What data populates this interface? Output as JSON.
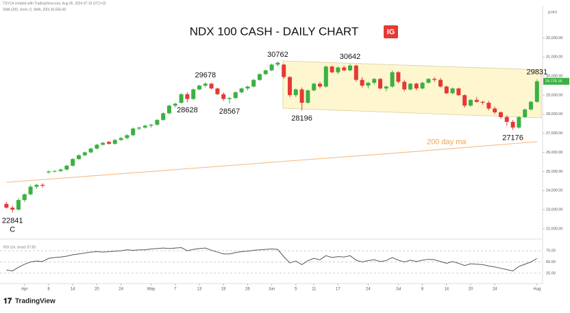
{
  "header": {
    "credit": "TSYCA created with TradingView.com, Aug 05, 2024 07:19 UTC+10",
    "indicator": "SMA (200, close, 0, SMA, 200)  26,556.68",
    "scale_unit": "point",
    "brand": "TradingView"
  },
  "chart_data": {
    "type": "candlestick",
    "title": "NDX 100 CASH - DAILY CHART",
    "logo": "IG",
    "up_color": "#3cb043",
    "down_color": "#e53935",
    "ylim": [
      21600,
      33450
    ],
    "yticks": [
      {
        "value": 22000,
        "label": "22,000.00"
      },
      {
        "value": 23000,
        "label": "23,000.00"
      },
      {
        "value": 24000,
        "label": "24,000.00"
      },
      {
        "value": 25000,
        "label": "25,000.00"
      },
      {
        "value": 26000,
        "label": "26,000.00"
      },
      {
        "value": 27000,
        "label": "27,000.00"
      },
      {
        "value": 28000,
        "label": "28,000.00"
      },
      {
        "value": 29000,
        "label": "29,000.00"
      },
      {
        "value": 30000,
        "label": "30,000.00"
      },
      {
        "value": 31000,
        "label": "31,000.00"
      },
      {
        "value": 32000,
        "label": "32,000.00"
      }
    ],
    "xticks": [
      {
        "value": 3,
        "label": "Apr"
      },
      {
        "value": 7,
        "label": "8"
      },
      {
        "value": 11,
        "label": "14"
      },
      {
        "value": 15,
        "label": "20"
      },
      {
        "value": 19,
        "label": "24"
      },
      {
        "value": 24,
        "label": "May"
      },
      {
        "value": 28,
        "label": "7"
      },
      {
        "value": 32,
        "label": "13"
      },
      {
        "value": 36,
        "label": "19"
      },
      {
        "value": 40,
        "label": "26"
      },
      {
        "value": 44,
        "label": "Jun"
      },
      {
        "value": 48,
        "label": "5"
      },
      {
        "value": 51,
        "label": "11"
      },
      {
        "value": 55,
        "label": "17"
      },
      {
        "value": 60,
        "label": "24"
      },
      {
        "value": 65,
        "label": "Jul"
      },
      {
        "value": 69,
        "label": "8"
      },
      {
        "value": 73,
        "label": "14"
      },
      {
        "value": 77,
        "label": "20"
      },
      {
        "value": 81,
        "label": "24"
      },
      {
        "value": 88,
        "label": "Aug"
      }
    ],
    "last_price": {
      "value": 29725.16,
      "label": "29,725.16"
    },
    "ohlc": [
      [
        23300,
        23400,
        23050,
        23100
      ],
      [
        23100,
        23200,
        22841,
        23000
      ],
      [
        23000,
        23600,
        22950,
        23500
      ],
      [
        23500,
        23850,
        23400,
        23800
      ],
      [
        23800,
        24300,
        23750,
        24200
      ],
      [
        24200,
        24350,
        24100,
        24300
      ],
      [
        24300,
        24380,
        24150,
        24250
      ],
      [
        24950,
        25050,
        24900,
        25000
      ],
      [
        25000,
        25080,
        24950,
        25020
      ],
      [
        25020,
        25150,
        24980,
        25100
      ],
      [
        25100,
        25350,
        25050,
        25300
      ],
      [
        25300,
        25700,
        25250,
        25650
      ],
      [
        25650,
        25900,
        25600,
        25850
      ],
      [
        25850,
        26050,
        25800,
        26000
      ],
      [
        26000,
        26250,
        25950,
        26200
      ],
      [
        26200,
        26450,
        26150,
        26400
      ],
      [
        26400,
        26550,
        26350,
        26500
      ],
      [
        26550,
        26600,
        26400,
        26450
      ],
      [
        26450,
        26700,
        26400,
        26650
      ],
      [
        26650,
        26800,
        26600,
        26750
      ],
      [
        26750,
        26950,
        26700,
        26900
      ],
      [
        26900,
        27300,
        26850,
        27250
      ],
      [
        27250,
        27350,
        27150,
        27300
      ],
      [
        27300,
        27450,
        27250,
        27400
      ],
      [
        27400,
        27500,
        27300,
        27450
      ],
      [
        27450,
        27750,
        27400,
        27700
      ],
      [
        27700,
        28100,
        27650,
        28050
      ],
      [
        28050,
        28500,
        28000,
        28450
      ],
      [
        28450,
        28600,
        28350,
        28550
      ],
      [
        28600,
        29100,
        28550,
        29050
      ],
      [
        29050,
        29150,
        28628,
        28800
      ],
      [
        28800,
        29350,
        28750,
        29300
      ],
      [
        29300,
        29550,
        29250,
        29500
      ],
      [
        29500,
        29678,
        29400,
        29600
      ],
      [
        29600,
        29650,
        29300,
        29350
      ],
      [
        29350,
        29400,
        29000,
        29050
      ],
      [
        29050,
        29150,
        28700,
        28800
      ],
      [
        28800,
        28900,
        28567,
        28850
      ],
      [
        28850,
        29200,
        28800,
        29150
      ],
      [
        29150,
        29400,
        29100,
        29350
      ],
      [
        29350,
        29500,
        29250,
        29450
      ],
      [
        29450,
        29850,
        29400,
        29800
      ],
      [
        29800,
        30150,
        29750,
        30100
      ],
      [
        30100,
        30350,
        30050,
        30300
      ],
      [
        30300,
        30650,
        30250,
        30600
      ],
      [
        30600,
        30762,
        30500,
        30700
      ],
      [
        30600,
        30650,
        29850,
        29950
      ],
      [
        29950,
        30000,
        28900,
        29000
      ],
      [
        29000,
        29350,
        28900,
        29300
      ],
      [
        29300,
        29400,
        28196,
        28600
      ],
      [
        28600,
        29300,
        28550,
        29250
      ],
      [
        29250,
        29650,
        29200,
        29600
      ],
      [
        29600,
        29700,
        29350,
        29450
      ],
      [
        29450,
        30550,
        29400,
        30500
      ],
      [
        30500,
        30550,
        30150,
        30200
      ],
      [
        30200,
        30500,
        30100,
        30450
      ],
      [
        30450,
        30550,
        30250,
        30300
      ],
      [
        30300,
        30642,
        30250,
        30550
      ],
      [
        30550,
        30600,
        29700,
        29800
      ],
      [
        29800,
        29950,
        29400,
        29500
      ],
      [
        29500,
        29700,
        29350,
        29650
      ],
      [
        29650,
        29900,
        29550,
        29850
      ],
      [
        29850,
        29900,
        29300,
        29350
      ],
      [
        29350,
        29500,
        29200,
        29450
      ],
      [
        29450,
        30300,
        29400,
        30200
      ],
      [
        30200,
        30250,
        29600,
        29700
      ],
      [
        29700,
        29800,
        29200,
        29300
      ],
      [
        29300,
        29650,
        29250,
        29600
      ],
      [
        29600,
        29650,
        29250,
        29350
      ],
      [
        29350,
        29700,
        29300,
        29650
      ],
      [
        29650,
        29900,
        29600,
        29850
      ],
      [
        29850,
        29950,
        29700,
        29800
      ],
      [
        29800,
        29900,
        29400,
        29450
      ],
      [
        29450,
        29500,
        29050,
        29100
      ],
      [
        29100,
        29400,
        29050,
        29350
      ],
      [
        29350,
        29400,
        28950,
        29000
      ],
      [
        29000,
        29050,
        28350,
        28450
      ],
      [
        28450,
        28800,
        28400,
        28750
      ],
      [
        28750,
        28900,
        28600,
        28650
      ],
      [
        28650,
        28700,
        28500,
        28600
      ],
      [
        28600,
        28700,
        28200,
        28300
      ],
      [
        28300,
        28400,
        28000,
        28100
      ],
      [
        28100,
        28150,
        27750,
        27850
      ],
      [
        27850,
        27950,
        27400,
        27600
      ],
      [
        27600,
        27700,
        27176,
        27300
      ],
      [
        27300,
        27900,
        27250,
        27850
      ],
      [
        27850,
        28300,
        27800,
        28250
      ],
      [
        28250,
        28700,
        28200,
        28650
      ],
      [
        28650,
        29831,
        28600,
        29725
      ]
    ],
    "ma": {
      "color": "#f5c08a",
      "x": [
        0,
        22,
        44,
        66,
        88
      ],
      "values": [
        24430,
        24950,
        25480,
        26000,
        26560
      ]
    },
    "annotations": [
      {
        "label": "22841",
        "index": 1,
        "side": "below"
      },
      {
        "label": "C",
        "index": 1,
        "side": "below"
      },
      {
        "label": "29678",
        "index": 33,
        "side": "above"
      },
      {
        "label": "28628",
        "index": 30,
        "side": "below"
      },
      {
        "label": "28567",
        "index": 37,
        "side": "below"
      },
      {
        "label": "30762",
        "index": 45,
        "side": "above"
      },
      {
        "label": "28196",
        "index": 49,
        "side": "below"
      },
      {
        "label": "30642",
        "index": 57,
        "side": "above"
      },
      {
        "label": "29831",
        "index": 88,
        "side": "above"
      },
      {
        "label": "27176",
        "index": 84,
        "side": "below"
      },
      {
        "label": "200 day ma",
        "index": 73,
        "side": "ma"
      }
    ],
    "rsi": {
      "label": "RSI (14, close)  57.83",
      "color": "#555555",
      "ylim": [
        5,
        95
      ],
      "yticks": [
        {
          "value": 75,
          "label": "75.00"
        },
        {
          "value": 50,
          "label": "50.00"
        },
        {
          "value": 25,
          "label": "25.00"
        }
      ],
      "values": [
        32,
        30,
        38,
        45,
        50,
        52,
        51,
        58,
        60,
        61,
        63,
        66,
        68,
        70,
        72,
        73,
        72,
        73,
        74,
        75,
        77,
        76,
        77,
        77,
        79,
        80,
        81,
        80,
        81,
        82,
        75,
        78,
        80,
        81,
        76,
        72,
        68,
        68,
        71,
        73,
        74,
        76,
        77,
        78,
        79,
        78,
        62,
        48,
        52,
        44,
        53,
        58,
        55,
        64,
        60,
        62,
        61,
        64,
        54,
        50,
        53,
        55,
        51,
        53,
        60,
        54,
        50,
        54,
        51,
        54,
        56,
        55,
        51,
        47,
        51,
        47,
        42,
        46,
        45,
        44,
        41,
        39,
        36,
        33,
        30,
        40,
        45,
        50,
        58
      ]
    }
  }
}
